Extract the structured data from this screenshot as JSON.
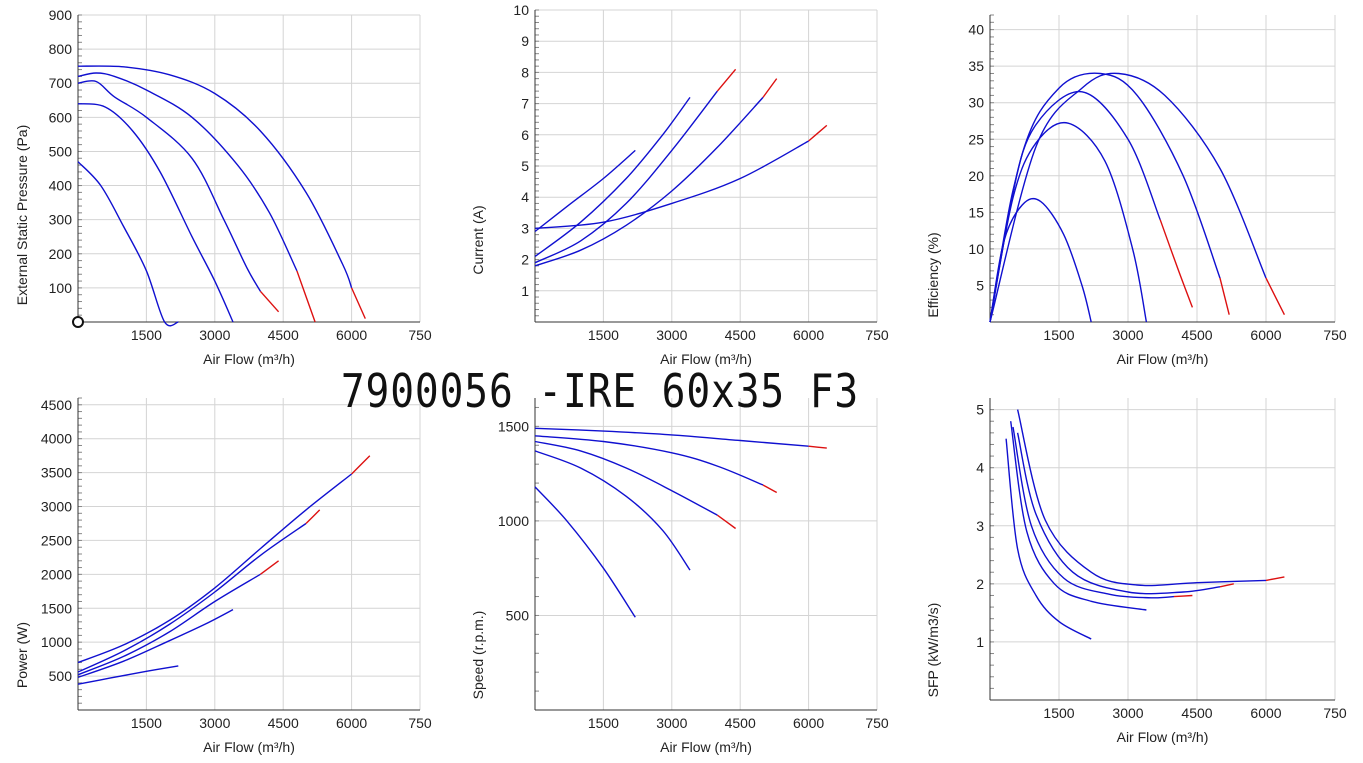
{
  "title": "7900056 -IRE 60x35 F3",
  "colors": {
    "curve": "#1010d0",
    "curve_end": "#dd1111",
    "grid": "#d4d4d4"
  },
  "chart_data": [
    {
      "type": "line",
      "xlabel": "Air Flow (m³/h)",
      "ylabel": "External Static Pressure (Pa)",
      "xlim": [
        0,
        7500
      ],
      "ylim": [
        0,
        900
      ],
      "xticks": [
        "1500",
        "3000",
        "4500",
        "6000",
        "750"
      ],
      "yticks": [
        "100",
        "200",
        "300",
        "400",
        "500",
        "600",
        "700",
        "800",
        "900"
      ],
      "operating_point": [
        0,
        0
      ],
      "series": [
        {
          "x": [
            0,
            500,
            1000,
            1500,
            1900,
            2200
          ],
          "y": [
            470,
            400,
            280,
            150,
            0,
            0
          ],
          "red_from": 99
        },
        {
          "x": [
            0,
            600,
            1200,
            1800,
            2500,
            3000,
            3400
          ],
          "y": [
            640,
            630,
            560,
            440,
            250,
            120,
            0
          ],
          "red_from": 99
        },
        {
          "x": [
            0,
            400,
            800,
            1500,
            2500,
            3200,
            3700,
            4000,
            4400
          ],
          "y": [
            700,
            705,
            660,
            600,
            480,
            300,
            160,
            90,
            30
          ],
          "red_from": 7
        },
        {
          "x": [
            0,
            400,
            800,
            1500,
            2500,
            3500,
            4200,
            4800,
            5200
          ],
          "y": [
            720,
            730,
            720,
            680,
            600,
            460,
            320,
            150,
            0
          ],
          "red_from": 7
        },
        {
          "x": [
            0,
            1000,
            2000,
            3000,
            4000,
            5000,
            5800,
            6000,
            6300
          ],
          "y": [
            750,
            748,
            725,
            670,
            560,
            380,
            170,
            100,
            10
          ],
          "red_from": 7
        }
      ]
    },
    {
      "type": "line",
      "xlabel": "Air Flow (m³/h)",
      "ylabel": "Current (A)",
      "xlim": [
        0,
        7500
      ],
      "ylim": [
        0,
        10
      ],
      "xticks": [
        "1500",
        "3000",
        "4500",
        "6000",
        "750"
      ],
      "yticks": [
        "1",
        "2",
        "3",
        "4",
        "5",
        "6",
        "7",
        "8",
        "9",
        "10"
      ],
      "series": [
        {
          "x": [
            0,
            700,
            1500,
            2200
          ],
          "y": [
            2.9,
            3.7,
            4.6,
            5.5
          ],
          "red_from": 99
        },
        {
          "x": [
            0,
            1000,
            2000,
            2800,
            3400
          ],
          "y": [
            2.1,
            3.2,
            4.6,
            6.0,
            7.2
          ],
          "red_from": 99
        },
        {
          "x": [
            0,
            1000,
            2000,
            3000,
            4000,
            4400
          ],
          "y": [
            1.9,
            2.6,
            3.8,
            5.5,
            7.4,
            8.1
          ],
          "red_from": 4
        },
        {
          "x": [
            0,
            1000,
            2000,
            3000,
            4000,
            5000,
            5300
          ],
          "y": [
            1.8,
            2.3,
            3.1,
            4.2,
            5.6,
            7.2,
            7.8
          ],
          "red_from": 5
        },
        {
          "x": [
            0,
            1500,
            3000,
            4500,
            6000,
            6400
          ],
          "y": [
            3.0,
            3.2,
            3.8,
            4.6,
            5.8,
            6.3
          ],
          "red_from": 4
        }
      ]
    },
    {
      "type": "line",
      "xlabel": "Air Flow (m³/h)",
      "ylabel": "Efficiency (%)",
      "xlim": [
        0,
        7500
      ],
      "ylim": [
        0,
        42
      ],
      "xticks": [
        "1500",
        "3000",
        "4500",
        "6000",
        "750"
      ],
      "yticks": [
        "5",
        "10",
        "15",
        "20",
        "25",
        "30",
        "35",
        "40"
      ],
      "series": [
        {
          "x": [
            0,
            300,
            700,
            1100,
            1600,
            2000,
            2200
          ],
          "y": [
            0,
            11,
            16,
            16.5,
            12,
            5,
            0
          ],
          "red_from": 99
        },
        {
          "x": [
            0,
            500,
            1000,
            1700,
            2500,
            3100,
            3400
          ],
          "y": [
            0,
            17,
            24.5,
            27.2,
            22,
            10,
            0
          ],
          "red_from": 99
        },
        {
          "x": [
            0,
            500,
            1000,
            2000,
            3000,
            3700,
            4100,
            4400
          ],
          "y": [
            0,
            18,
            27,
            31.5,
            25,
            14,
            7,
            2
          ],
          "red_from": 5
        },
        {
          "x": [
            0,
            700,
            1500,
            2400,
            3200,
            4200,
            5000,
            5200
          ],
          "y": [
            0,
            23,
            32,
            34,
            31,
            20,
            6,
            1
          ],
          "red_from": 6
        },
        {
          "x": [
            0,
            1000,
            2000,
            2800,
            3800,
            5000,
            6000,
            6400
          ],
          "y": [
            0,
            24,
            32,
            34,
            31,
            21,
            6,
            1
          ],
          "red_from": 6
        }
      ]
    },
    {
      "type": "line",
      "xlabel": "Air Flow (m³/h)",
      "ylabel": "Power (W)",
      "xlim": [
        0,
        7500
      ],
      "ylim": [
        0,
        4600
      ],
      "xticks": [
        "1500",
        "3000",
        "4500",
        "6000",
        "750"
      ],
      "yticks": [
        "500",
        "1000",
        "1500",
        "2000",
        "2500",
        "3000",
        "3500",
        "4000",
        "4500"
      ],
      "series": [
        {
          "x": [
            0,
            700,
            1500,
            2200
          ],
          "y": [
            380,
            470,
            570,
            650
          ],
          "red_from": 99
        },
        {
          "x": [
            0,
            1000,
            2000,
            2800,
            3400
          ],
          "y": [
            480,
            720,
            1020,
            1270,
            1480
          ],
          "red_from": 99
        },
        {
          "x": [
            0,
            1000,
            2000,
            3000,
            4000,
            4400
          ],
          "y": [
            520,
            790,
            1150,
            1600,
            2000,
            2200
          ],
          "red_from": 4
        },
        {
          "x": [
            0,
            1000,
            2000,
            3000,
            4000,
            5000,
            5300
          ],
          "y": [
            560,
            870,
            1260,
            1740,
            2280,
            2750,
            2950
          ],
          "red_from": 5
        },
        {
          "x": [
            0,
            1000,
            2000,
            3000,
            4000,
            5000,
            6000,
            6400
          ],
          "y": [
            700,
            960,
            1320,
            1800,
            2380,
            2950,
            3480,
            3750
          ],
          "red_from": 6
        }
      ]
    },
    {
      "type": "line",
      "xlabel": "Air Flow (m³/h)",
      "ylabel": "Speed (r.p.m.)",
      "xlim": [
        0,
        7500
      ],
      "ylim": [
        0,
        1650
      ],
      "xticks": [
        "1500",
        "3000",
        "4500",
        "6000",
        "750"
      ],
      "yticks": [
        "500",
        "1000",
        "1500"
      ],
      "series": [
        {
          "x": [
            0,
            700,
            1500,
            2200
          ],
          "y": [
            1180,
            1000,
            750,
            490
          ],
          "red_from": 99
        },
        {
          "x": [
            0,
            1000,
            2000,
            2800,
            3400
          ],
          "y": [
            1370,
            1280,
            1130,
            950,
            740
          ],
          "red_from": 99
        },
        {
          "x": [
            0,
            1000,
            2000,
            3000,
            4000,
            4400
          ],
          "y": [
            1420,
            1370,
            1280,
            1160,
            1030,
            960
          ],
          "red_from": 4
        },
        {
          "x": [
            0,
            1500,
            3000,
            4000,
            5000,
            5300
          ],
          "y": [
            1450,
            1420,
            1360,
            1290,
            1190,
            1150
          ],
          "red_from": 4
        },
        {
          "x": [
            0,
            1500,
            3000,
            4500,
            6000,
            6400
          ],
          "y": [
            1490,
            1475,
            1455,
            1425,
            1395,
            1385
          ],
          "red_from": 4
        }
      ]
    },
    {
      "type": "line",
      "xlabel": "Air Flow (m³/h)",
      "ylabel": "SFP (kW/m3/s)",
      "xlim": [
        0,
        7500
      ],
      "ylim": [
        0,
        5.2
      ],
      "xticks": [
        "1500",
        "3000",
        "4500",
        "6000",
        "750"
      ],
      "yticks": [
        "1",
        "2",
        "3",
        "4",
        "5"
      ],
      "series": [
        {
          "x": [
            350,
            600,
            1000,
            1500,
            2200
          ],
          "y": [
            4.5,
            2.6,
            1.8,
            1.35,
            1.05
          ],
          "red_from": 99
        },
        {
          "x": [
            450,
            800,
            1400,
            2200,
            3400
          ],
          "y": [
            4.8,
            2.9,
            2.0,
            1.7,
            1.55
          ],
          "red_from": 99
        },
        {
          "x": [
            500,
            900,
            1600,
            2600,
            3500,
            4000,
            4400
          ],
          "y": [
            4.7,
            3.0,
            2.1,
            1.82,
            1.76,
            1.78,
            1.8
          ],
          "red_from": 5
        },
        {
          "x": [
            600,
            1000,
            1800,
            3000,
            4200,
            5000,
            5300
          ],
          "y": [
            4.6,
            3.2,
            2.2,
            1.86,
            1.86,
            1.95,
            2.0
          ],
          "red_from": 5
        },
        {
          "x": [
            600,
            1200,
            2200,
            3200,
            4500,
            6000,
            6400
          ],
          "y": [
            5.0,
            3.1,
            2.2,
            1.98,
            2.02,
            2.06,
            2.12
          ],
          "red_from": 5
        }
      ]
    }
  ]
}
